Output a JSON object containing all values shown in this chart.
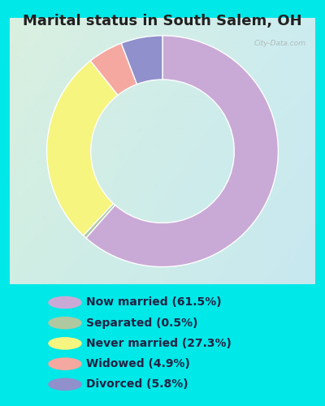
{
  "title": "Marital status in South Salem, OH",
  "slices": [
    61.5,
    0.5,
    27.3,
    4.9,
    5.8
  ],
  "labels": [
    "Now married (61.5%)",
    "Separated (0.5%)",
    "Never married (27.3%)",
    "Widowed (4.9%)",
    "Divorced (5.8%)"
  ],
  "colors": [
    "#c9aad6",
    "#b0c8a0",
    "#f5f580",
    "#f5a8a0",
    "#9090cc"
  ],
  "bg_color": "#00e8e8",
  "chart_bg_tl": "#daf0e0",
  "chart_bg_br": "#c8e8f0",
  "title_fontsize": 13,
  "title_color": "#222222",
  "watermark": "City-Data.com",
  "legend_text_color": "#222244",
  "legend_fontsize": 10,
  "figsize": [
    4.0,
    5.0
  ],
  "dpi": 100
}
